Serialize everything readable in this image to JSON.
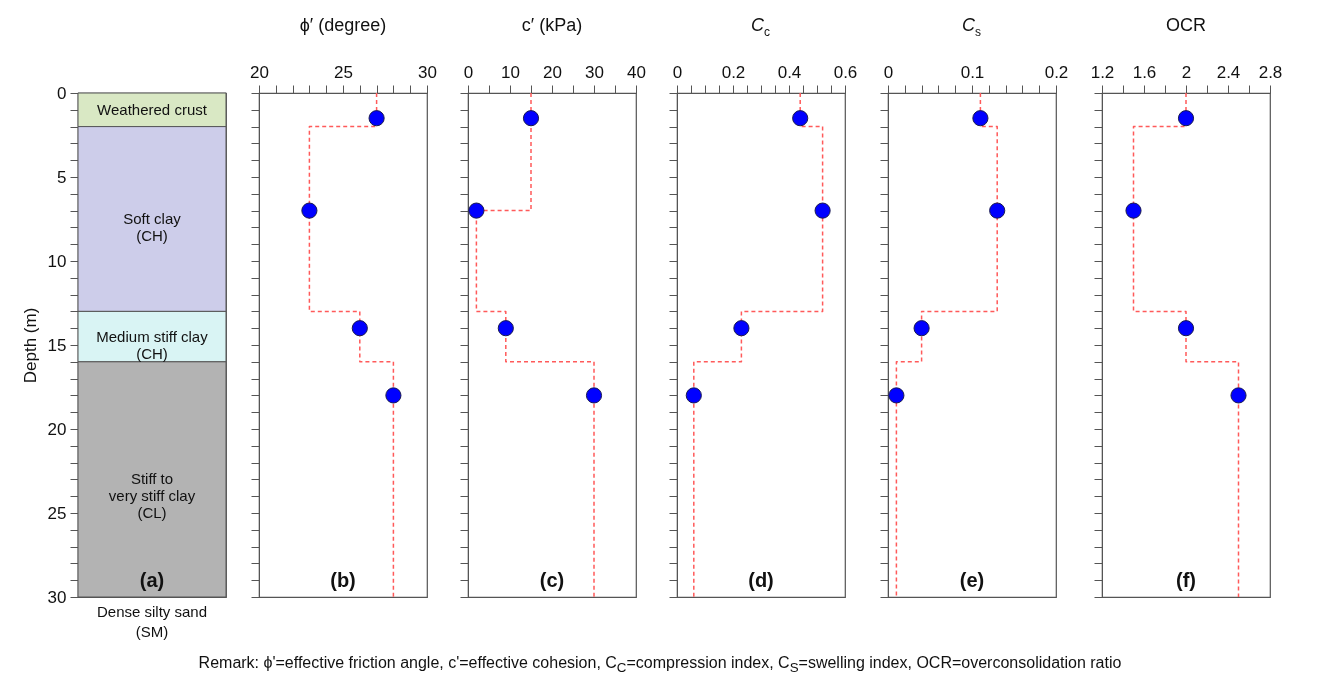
{
  "chart_data": [
    {
      "type": "bar",
      "stacked": true,
      "categories": [
        null
      ],
      "ylabel": "Depth (m)",
      "ylim": [
        30,
        0
      ],
      "tick_labels": "y",
      "yticks": [
        0,
        {
          "value": 1,
          "label": null
        },
        {
          "value": 2,
          "label": null
        },
        {
          "value": 3,
          "label": null
        },
        {
          "value": 4,
          "label": null
        },
        5,
        {
          "value": 6,
          "label": null
        },
        {
          "value": 7,
          "label": null
        },
        {
          "value": 8,
          "label": null
        },
        {
          "value": 9,
          "label": null
        },
        10,
        {
          "value": 11,
          "label": null
        },
        {
          "value": 12,
          "label": null
        },
        {
          "value": 13,
          "label": null
        },
        {
          "value": 14,
          "label": null
        },
        15,
        {
          "value": 16,
          "label": null
        },
        {
          "value": 17,
          "label": null
        },
        {
          "value": 18,
          "label": null
        },
        {
          "value": 19,
          "label": null
        },
        20,
        {
          "value": 21,
          "label": null
        },
        {
          "value": 22,
          "label": null
        },
        {
          "value": 23,
          "label": null
        },
        {
          "value": 24,
          "label": null
        },
        25,
        {
          "value": 26,
          "label": null
        },
        {
          "value": 27,
          "label": null
        },
        {
          "value": 28,
          "label": null
        },
        {
          "value": 29,
          "label": null
        },
        30
      ],
      "series": [
        {
          "name": "Weathered crust",
          "color": "#d9e8c4",
          "values": [
            2
          ]
        },
        {
          "name": "Soft clay\n(CH)",
          "color": "#cdcdea",
          "values": [
            11
          ]
        },
        {
          "name": "Medium stiff clay\n(CH)",
          "color": "#d9f4f4",
          "values": [
            3
          ]
        },
        {
          "name": "Stiff to\nvery stiff clay\n(CL)",
          "color": "#b3b3b3",
          "values": [
            14
          ]
        }
      ],
      "annotations": [
        "(a)",
        "Dense silty sand\n(SM)",
        "Remark: ϕ'=effective friction angle, c'=effective cohesion, C$_{C}$=compression index, C$_{S}$=swelling index, OCR=overconsolidation ratio"
      ]
    },
    {
      "type": "scatter",
      "xlabel": "ϕ′ (degree)",
      "xlim": [
        20,
        30
      ],
      "ylim": [
        30,
        0
      ],
      "tick_labels": "x",
      "line_style": "dashed",
      "xticks": [
        20,
        {
          "value": 21,
          "label": null
        },
        {
          "value": 22,
          "label": null
        },
        {
          "value": 23,
          "label": null
        },
        {
          "value": 24,
          "label": null
        },
        25,
        {
          "value": 26,
          "label": null
        },
        {
          "value": 27,
          "label": null
        },
        {
          "value": 28,
          "label": null
        },
        {
          "value": 29,
          "label": null
        },
        30
      ],
      "yticks": [
        0,
        {
          "value": 1,
          "label": null
        },
        {
          "value": 2,
          "label": null
        },
        {
          "value": 3,
          "label": null
        },
        {
          "value": 4,
          "label": null
        },
        5,
        {
          "value": 6,
          "label": null
        },
        {
          "value": 7,
          "label": null
        },
        {
          "value": 8,
          "label": null
        },
        {
          "value": 9,
          "label": null
        },
        10,
        {
          "value": 11,
          "label": null
        },
        {
          "value": 12,
          "label": null
        },
        {
          "value": 13,
          "label": null
        },
        {
          "value": 14,
          "label": null
        },
        15,
        {
          "value": 16,
          "label": null
        },
        {
          "value": 17,
          "label": null
        },
        {
          "value": 18,
          "label": null
        },
        {
          "value": 19,
          "label": null
        },
        20,
        {
          "value": 21,
          "label": null
        },
        {
          "value": 22,
          "label": null
        },
        {
          "value": 23,
          "label": null
        },
        {
          "value": 24,
          "label": null
        },
        25,
        {
          "value": 26,
          "label": null
        },
        {
          "value": 27,
          "label": null
        },
        {
          "value": 28,
          "label": null
        },
        {
          "value": 29,
          "label": null
        },
        30
      ],
      "series": [
        {
          "type": "line",
          "color": "#ff5a5a",
          "x": [
            27,
            27,
            23,
            23,
            26,
            26,
            28,
            28
          ],
          "values": [
            0,
            2,
            2,
            13,
            13,
            16,
            16,
            30
          ]
        },
        {
          "type": "scatter",
          "marker": "circle",
          "color": "#0000ff",
          "x": [
            27,
            23,
            26,
            28
          ],
          "values": [
            1.5,
            7,
            14,
            18
          ]
        }
      ],
      "annotations": [
        "(b)"
      ]
    },
    {
      "type": "scatter",
      "xlabel": "c′ (kPa)",
      "xlim": [
        0,
        40
      ],
      "ylim": [
        30,
        0
      ],
      "tick_labels": "x",
      "line_style": "dashed",
      "xticks": [
        0,
        {
          "value": 5,
          "label": null
        },
        10,
        {
          "value": 15,
          "label": null
        },
        20,
        {
          "value": 25,
          "label": null
        },
        30,
        {
          "value": 35,
          "label": null
        },
        40
      ],
      "yticks": [
        0,
        {
          "value": 1,
          "label": null
        },
        {
          "value": 2,
          "label": null
        },
        {
          "value": 3,
          "label": null
        },
        {
          "value": 4,
          "label": null
        },
        5,
        {
          "value": 6,
          "label": null
        },
        {
          "value": 7,
          "label": null
        },
        {
          "value": 8,
          "label": null
        },
        {
          "value": 9,
          "label": null
        },
        10,
        {
          "value": 11,
          "label": null
        },
        {
          "value": 12,
          "label": null
        },
        {
          "value": 13,
          "label": null
        },
        {
          "value": 14,
          "label": null
        },
        15,
        {
          "value": 16,
          "label": null
        },
        {
          "value": 17,
          "label": null
        },
        {
          "value": 18,
          "label": null
        },
        {
          "value": 19,
          "label": null
        },
        20,
        {
          "value": 21,
          "label": null
        },
        {
          "value": 22,
          "label": null
        },
        {
          "value": 23,
          "label": null
        },
        {
          "value": 24,
          "label": null
        },
        25,
        {
          "value": 26,
          "label": null
        },
        {
          "value": 27,
          "label": null
        },
        {
          "value": 28,
          "label": null
        },
        {
          "value": 29,
          "label": null
        },
        30
      ],
      "series": [
        {
          "type": "line",
          "color": "#ff5a5a",
          "x": [
            15,
            15,
            2,
            2,
            9,
            9,
            30,
            30
          ],
          "values": [
            0,
            7,
            7,
            13,
            13,
            16,
            16,
            30
          ]
        },
        {
          "type": "scatter",
          "marker": "circle",
          "color": "#0000ff",
          "x": [
            15,
            2,
            9,
            30
          ],
          "values": [
            1.5,
            7,
            14,
            18
          ]
        }
      ],
      "annotations": [
        "(c)"
      ]
    },
    {
      "type": "scatter",
      "xlabel": "C$_{c}$",
      "xlim": [
        0,
        0.6
      ],
      "ylim": [
        30,
        0
      ],
      "tick_labels": "x",
      "line_style": "dashed",
      "xticks": [
        0,
        {
          "value": 0.05,
          "label": null
        },
        {
          "value": 0.1,
          "label": null
        },
        {
          "value": 0.15,
          "label": null
        },
        0.2,
        {
          "value": 0.25,
          "label": null
        },
        {
          "value": 0.3,
          "label": null
        },
        {
          "value": 0.35,
          "label": null
        },
        0.4,
        {
          "value": 0.45,
          "label": null
        },
        {
          "value": 0.5,
          "label": null
        },
        {
          "value": 0.55,
          "label": null
        },
        0.6
      ],
      "yticks": [
        0,
        {
          "value": 1,
          "label": null
        },
        {
          "value": 2,
          "label": null
        },
        {
          "value": 3,
          "label": null
        },
        {
          "value": 4,
          "label": null
        },
        5,
        {
          "value": 6,
          "label": null
        },
        {
          "value": 7,
          "label": null
        },
        {
          "value": 8,
          "label": null
        },
        {
          "value": 9,
          "label": null
        },
        10,
        {
          "value": 11,
          "label": null
        },
        {
          "value": 12,
          "label": null
        },
        {
          "value": 13,
          "label": null
        },
        {
          "value": 14,
          "label": null
        },
        15,
        {
          "value": 16,
          "label": null
        },
        {
          "value": 17,
          "label": null
        },
        {
          "value": 18,
          "label": null
        },
        {
          "value": 19,
          "label": null
        },
        20,
        {
          "value": 21,
          "label": null
        },
        {
          "value": 22,
          "label": null
        },
        {
          "value": 23,
          "label": null
        },
        {
          "value": 24,
          "label": null
        },
        25,
        {
          "value": 26,
          "label": null
        },
        {
          "value": 27,
          "label": null
        },
        {
          "value": 28,
          "label": null
        },
        {
          "value": 29,
          "label": null
        },
        30
      ],
      "series": [
        {
          "type": "line",
          "color": "#ff5a5a",
          "x": [
            0.44,
            0.44,
            0.52,
            0.52,
            0.23,
            0.23,
            0.06,
            0.06
          ],
          "values": [
            0,
            2,
            2,
            13,
            13,
            16,
            16,
            30
          ]
        },
        {
          "type": "scatter",
          "marker": "circle",
          "color": "#0000ff",
          "x": [
            0.44,
            0.52,
            0.23,
            0.06
          ],
          "values": [
            1.5,
            7,
            14,
            18
          ]
        }
      ],
      "annotations": [
        "(d)"
      ]
    },
    {
      "type": "scatter",
      "xlabel": "C$_{s}$",
      "xlim": [
        0,
        0.2
      ],
      "ylim": [
        30,
        0
      ],
      "tick_labels": "x",
      "line_style": "dashed",
      "xticks": [
        0,
        {
          "value": 0.02,
          "label": null
        },
        {
          "value": 0.04,
          "label": null
        },
        {
          "value": 0.06,
          "label": null
        },
        {
          "value": 0.08,
          "label": null
        },
        0.1,
        {
          "value": 0.12,
          "label": null
        },
        {
          "value": 0.14,
          "label": null
        },
        {
          "value": 0.16,
          "label": null
        },
        {
          "value": 0.18,
          "label": null
        },
        0.2
      ],
      "yticks": [
        0,
        {
          "value": 1,
          "label": null
        },
        {
          "value": 2,
          "label": null
        },
        {
          "value": 3,
          "label": null
        },
        {
          "value": 4,
          "label": null
        },
        5,
        {
          "value": 6,
          "label": null
        },
        {
          "value": 7,
          "label": null
        },
        {
          "value": 8,
          "label": null
        },
        {
          "value": 9,
          "label": null
        },
        10,
        {
          "value": 11,
          "label": null
        },
        {
          "value": 12,
          "label": null
        },
        {
          "value": 13,
          "label": null
        },
        {
          "value": 14,
          "label": null
        },
        15,
        {
          "value": 16,
          "label": null
        },
        {
          "value": 17,
          "label": null
        },
        {
          "value": 18,
          "label": null
        },
        {
          "value": 19,
          "label": null
        },
        20,
        {
          "value": 21,
          "label": null
        },
        {
          "value": 22,
          "label": null
        },
        {
          "value": 23,
          "label": null
        },
        {
          "value": 24,
          "label": null
        },
        25,
        {
          "value": 26,
          "label": null
        },
        {
          "value": 27,
          "label": null
        },
        {
          "value": 28,
          "label": null
        },
        {
          "value": 29,
          "label": null
        },
        30
      ],
      "series": [
        {
          "type": "line",
          "color": "#ff5a5a",
          "x": [
            0.11,
            0.11,
            0.13,
            0.13,
            0.04,
            0.04,
            0.01,
            0.01
          ],
          "values": [
            0,
            2,
            2,
            13,
            13,
            16,
            16,
            30
          ]
        },
        {
          "type": "scatter",
          "marker": "circle",
          "color": "#0000ff",
          "x": [
            0.11,
            0.13,
            0.04,
            0.01
          ],
          "values": [
            1.5,
            7,
            14,
            18
          ]
        }
      ],
      "annotations": [
        "(e)"
      ]
    },
    {
      "type": "scatter",
      "xlabel": "OCR",
      "xlim": [
        1.2,
        2.8
      ],
      "ylim": [
        30,
        0
      ],
      "tick_labels": "x",
      "line_style": "dashed",
      "xticks": [
        1.2,
        {
          "value": 1.4,
          "label": null
        },
        1.6,
        {
          "value": 1.8,
          "label": null
        },
        2,
        {
          "value": 2.2,
          "label": null
        },
        2.4,
        {
          "value": 2.6,
          "label": null
        },
        2.8
      ],
      "yticks": [
        0,
        {
          "value": 1,
          "label": null
        },
        {
          "value": 2,
          "label": null
        },
        {
          "value": 3,
          "label": null
        },
        {
          "value": 4,
          "label": null
        },
        5,
        {
          "value": 6,
          "label": null
        },
        {
          "value": 7,
          "label": null
        },
        {
          "value": 8,
          "label": null
        },
        {
          "value": 9,
          "label": null
        },
        10,
        {
          "value": 11,
          "label": null
        },
        {
          "value": 12,
          "label": null
        },
        {
          "value": 13,
          "label": null
        },
        {
          "value": 14,
          "label": null
        },
        15,
        {
          "value": 16,
          "label": null
        },
        {
          "value": 17,
          "label": null
        },
        {
          "value": 18,
          "label": null
        },
        {
          "value": 19,
          "label": null
        },
        20,
        {
          "value": 21,
          "label": null
        },
        {
          "value": 22,
          "label": null
        },
        {
          "value": 23,
          "label": null
        },
        {
          "value": 24,
          "label": null
        },
        25,
        {
          "value": 26,
          "label": null
        },
        {
          "value": 27,
          "label": null
        },
        {
          "value": 28,
          "label": null
        },
        {
          "value": 29,
          "label": null
        },
        30
      ],
      "series": [
        {
          "type": "line",
          "color": "#ff5a5a",
          "x": [
            2,
            2,
            1.5,
            1.5,
            2,
            2,
            2.5,
            2.5
          ],
          "values": [
            0,
            2,
            2,
            13,
            13,
            16,
            16,
            30
          ]
        },
        {
          "type": "scatter",
          "marker": "circle",
          "color": "#0000ff",
          "x": [
            2,
            1.5,
            2,
            2.5
          ],
          "values": [
            1.5,
            7,
            14,
            18
          ]
        }
      ],
      "annotations": [
        "(f)"
      ]
    }
  ]
}
